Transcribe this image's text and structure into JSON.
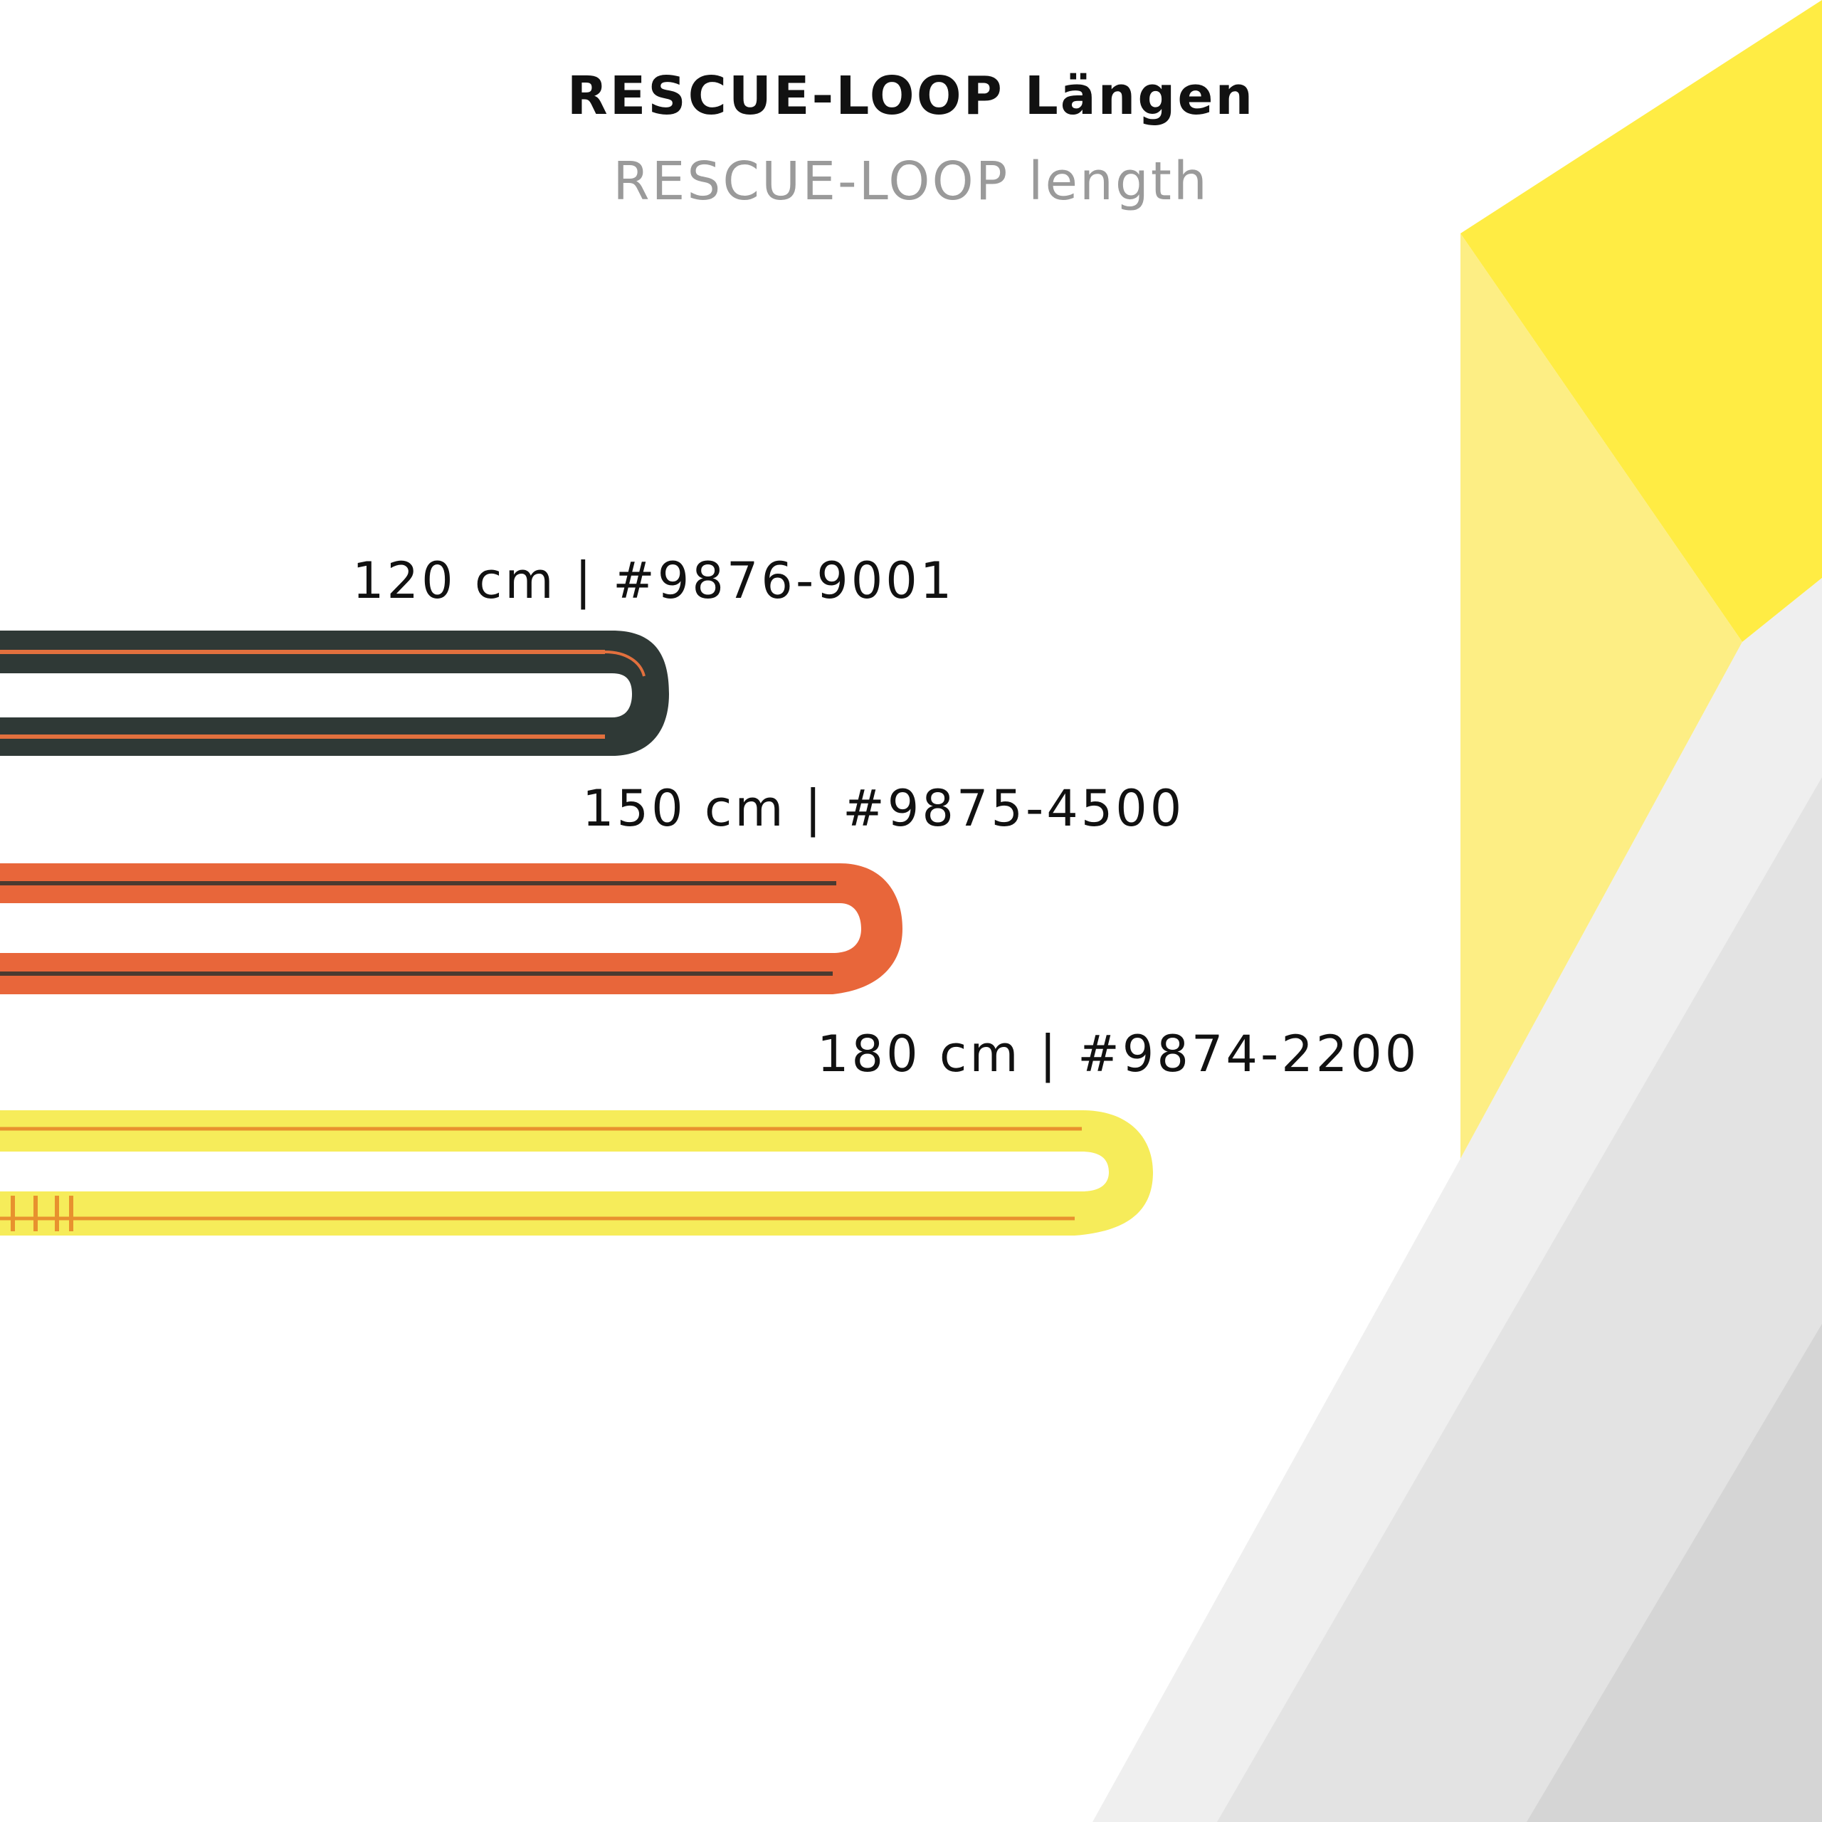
{
  "title": {
    "de": "RESCUE-LOOP Längen",
    "en": "RESCUE-LOOP length"
  },
  "loops": [
    {
      "length": "120 cm",
      "separator": "|",
      "article": "#9876-9001",
      "color": "#2f3936",
      "stripe": "#e2703e"
    },
    {
      "length": "150 cm",
      "separator": "|",
      "article": "#9875-4500",
      "color": "#e8663a",
      "stripe": "#4a3a30"
    },
    {
      "length": "180 cm",
      "separator": "|",
      "article": "#9874-2200",
      "color": "#f6ec5a",
      "stripe": "#e8912e"
    }
  ],
  "colors": {
    "yellow_bright": "#ffec44",
    "yellow_light": "#fdee84",
    "gray_light": "#efefef",
    "gray_mid": "#e3e3e3",
    "gray_dark": "#d5d5d5"
  }
}
